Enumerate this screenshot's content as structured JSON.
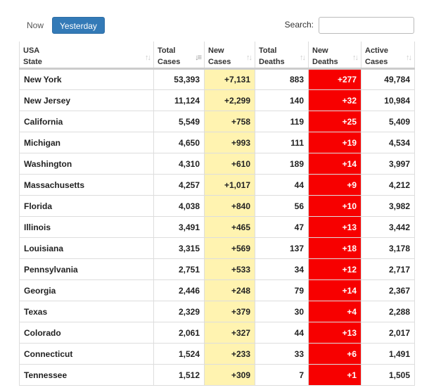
{
  "toolbar": {
    "now_label": "Now",
    "yesterday_label": "Yesterday",
    "search_label": "Search:",
    "search_value": ""
  },
  "table": {
    "headers": {
      "state": [
        "USA",
        "State"
      ],
      "total_cases": [
        "Total",
        "Cases"
      ],
      "new_cases": [
        "New",
        "Cases"
      ],
      "total_deaths": [
        "Total",
        "Deaths"
      ],
      "new_deaths": [
        "New",
        "Deaths"
      ],
      "active_cases": [
        "Active",
        "Cases"
      ]
    },
    "rows": [
      {
        "state": "New York",
        "total_cases": "53,393",
        "new_cases": "+7,131",
        "total_deaths": "883",
        "new_deaths": "+277",
        "active_cases": "49,784"
      },
      {
        "state": "New Jersey",
        "total_cases": "11,124",
        "new_cases": "+2,299",
        "total_deaths": "140",
        "new_deaths": "+32",
        "active_cases": "10,984"
      },
      {
        "state": "California",
        "total_cases": "5,549",
        "new_cases": "+758",
        "total_deaths": "119",
        "new_deaths": "+25",
        "active_cases": "5,409"
      },
      {
        "state": "Michigan",
        "total_cases": "4,650",
        "new_cases": "+993",
        "total_deaths": "111",
        "new_deaths": "+19",
        "active_cases": "4,534"
      },
      {
        "state": "Washington",
        "total_cases": "4,310",
        "new_cases": "+610",
        "total_deaths": "189",
        "new_deaths": "+14",
        "active_cases": "3,997"
      },
      {
        "state": "Massachusetts",
        "total_cases": "4,257",
        "new_cases": "+1,017",
        "total_deaths": "44",
        "new_deaths": "+9",
        "active_cases": "4,212"
      },
      {
        "state": "Florida",
        "total_cases": "4,038",
        "new_cases": "+840",
        "total_deaths": "56",
        "new_deaths": "+10",
        "active_cases": "3,982"
      },
      {
        "state": "Illinois",
        "total_cases": "3,491",
        "new_cases": "+465",
        "total_deaths": "47",
        "new_deaths": "+13",
        "active_cases": "3,442"
      },
      {
        "state": "Louisiana",
        "total_cases": "3,315",
        "new_cases": "+569",
        "total_deaths": "137",
        "new_deaths": "+18",
        "active_cases": "3,178"
      },
      {
        "state": "Pennsylvania",
        "total_cases": "2,751",
        "new_cases": "+533",
        "total_deaths": "34",
        "new_deaths": "+12",
        "active_cases": "2,717"
      },
      {
        "state": "Georgia",
        "total_cases": "2,446",
        "new_cases": "+248",
        "total_deaths": "79",
        "new_deaths": "+14",
        "active_cases": "2,367"
      },
      {
        "state": "Texas",
        "total_cases": "2,329",
        "new_cases": "+379",
        "total_deaths": "30",
        "new_deaths": "+4",
        "active_cases": "2,288"
      },
      {
        "state": "Colorado",
        "total_cases": "2,061",
        "new_cases": "+327",
        "total_deaths": "44",
        "new_deaths": "+13",
        "active_cases": "2,017"
      },
      {
        "state": "Connecticut",
        "total_cases": "1,524",
        "new_cases": "+233",
        "total_deaths": "33",
        "new_deaths": "+6",
        "active_cases": "1,491"
      },
      {
        "state": "Tennessee",
        "total_cases": "1,512",
        "new_cases": "+309",
        "total_deaths": "7",
        "new_deaths": "+1",
        "active_cases": "1,505"
      }
    ]
  },
  "colors": {
    "accent": "#337ab7",
    "new_cases_bg": "#fff3b0",
    "new_deaths_bg": "#f70000"
  },
  "icons": {
    "sort": "sort-arrows-icon",
    "sort_active": "sort-desc-icon"
  }
}
